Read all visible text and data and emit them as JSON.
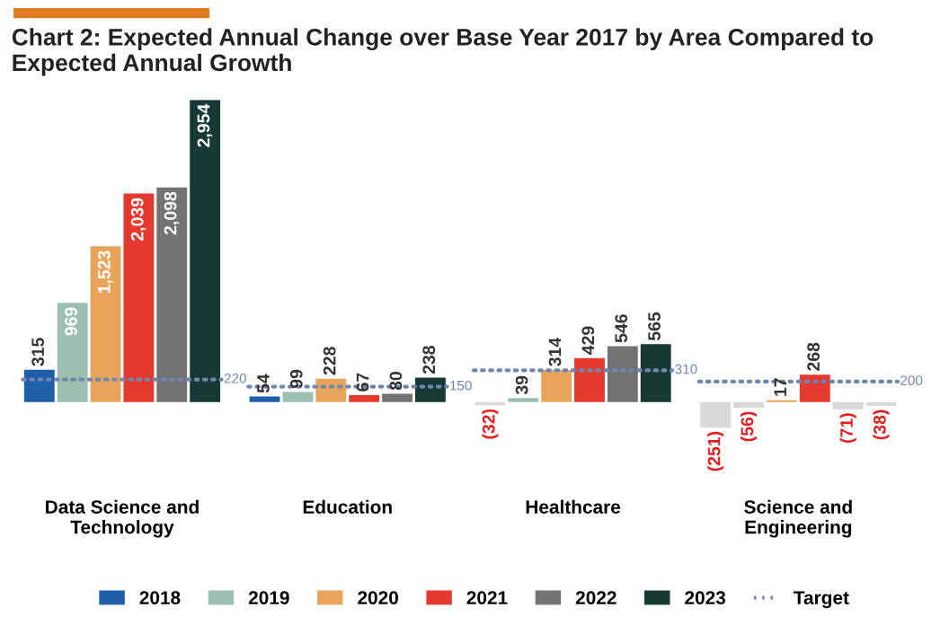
{
  "chart_data": {
    "type": "bar",
    "title": "Chart 2: Expected Annual Change over Base Year 2017 by Area Compared to Expected Annual Growth",
    "categories": [
      "Data Science and\nTechnology",
      "Education",
      "Healthcare",
      "Science and\nEngineering"
    ],
    "series": [
      {
        "name": "2018",
        "color": "#1f5fa8",
        "colors": [
          "#1f5fa8",
          "#1f5fa8",
          "#d9d9d9",
          "#d9d9d9"
        ],
        "values": [
          315,
          54,
          -32,
          -251
        ],
        "value_labels": [
          "315",
          "54",
          "(32)",
          "(251)"
        ]
      },
      {
        "name": "2019",
        "color": "#9dbfb0",
        "colors": [
          "#9dbfb0",
          "#9dbfb0",
          "#9dbfb0",
          "#d9d9d9"
        ],
        "values": [
          969,
          99,
          39,
          -56
        ],
        "value_labels": [
          "969",
          "99",
          "39",
          "(56)"
        ]
      },
      {
        "name": "2020",
        "color": "#e8a45a",
        "values": [
          1523,
          228,
          314,
          17
        ],
        "value_labels": [
          "1,523",
          "228",
          "314",
          "17"
        ]
      },
      {
        "name": "2021",
        "color": "#e53a2f",
        "values": [
          2039,
          67,
          429,
          268
        ],
        "value_labels": [
          "2,039",
          "67",
          "429",
          "268"
        ]
      },
      {
        "name": "2022",
        "color": "#737373",
        "colors": [
          "#737373",
          "#737373",
          "#737373",
          "#d9d9d9"
        ],
        "values": [
          2098,
          80,
          546,
          -71
        ],
        "value_labels": [
          "2,098",
          "80",
          "546",
          "(71)"
        ]
      },
      {
        "name": "2023",
        "color": "#163a33",
        "colors": [
          "#163a33",
          "#163a33",
          "#163a33",
          "#d9d9d9"
        ],
        "values": [
          2954,
          238,
          565,
          -38
        ],
        "value_labels": [
          "2,954",
          "238",
          "565",
          "(38)"
        ]
      }
    ],
    "ref_lines": [
      {
        "axis": "y",
        "value": 220,
        "label": "220",
        "color": "#6f86b0",
        "line_style": "dotted"
      },
      {
        "axis": "y",
        "value": 150,
        "label": "150",
        "color": "#6f86b0",
        "line_style": "dotted"
      },
      {
        "axis": "y",
        "value": 310,
        "label": "310",
        "color": "#6f86b0",
        "line_style": "dotted"
      },
      {
        "axis": "y",
        "value": 200,
        "label": "200",
        "color": "#6f86b0",
        "line_style": "dotted"
      }
    ],
    "annotations": [
      "Target"
    ],
    "legend": "bottom",
    "tick_labels": "x",
    "grid": false
  }
}
